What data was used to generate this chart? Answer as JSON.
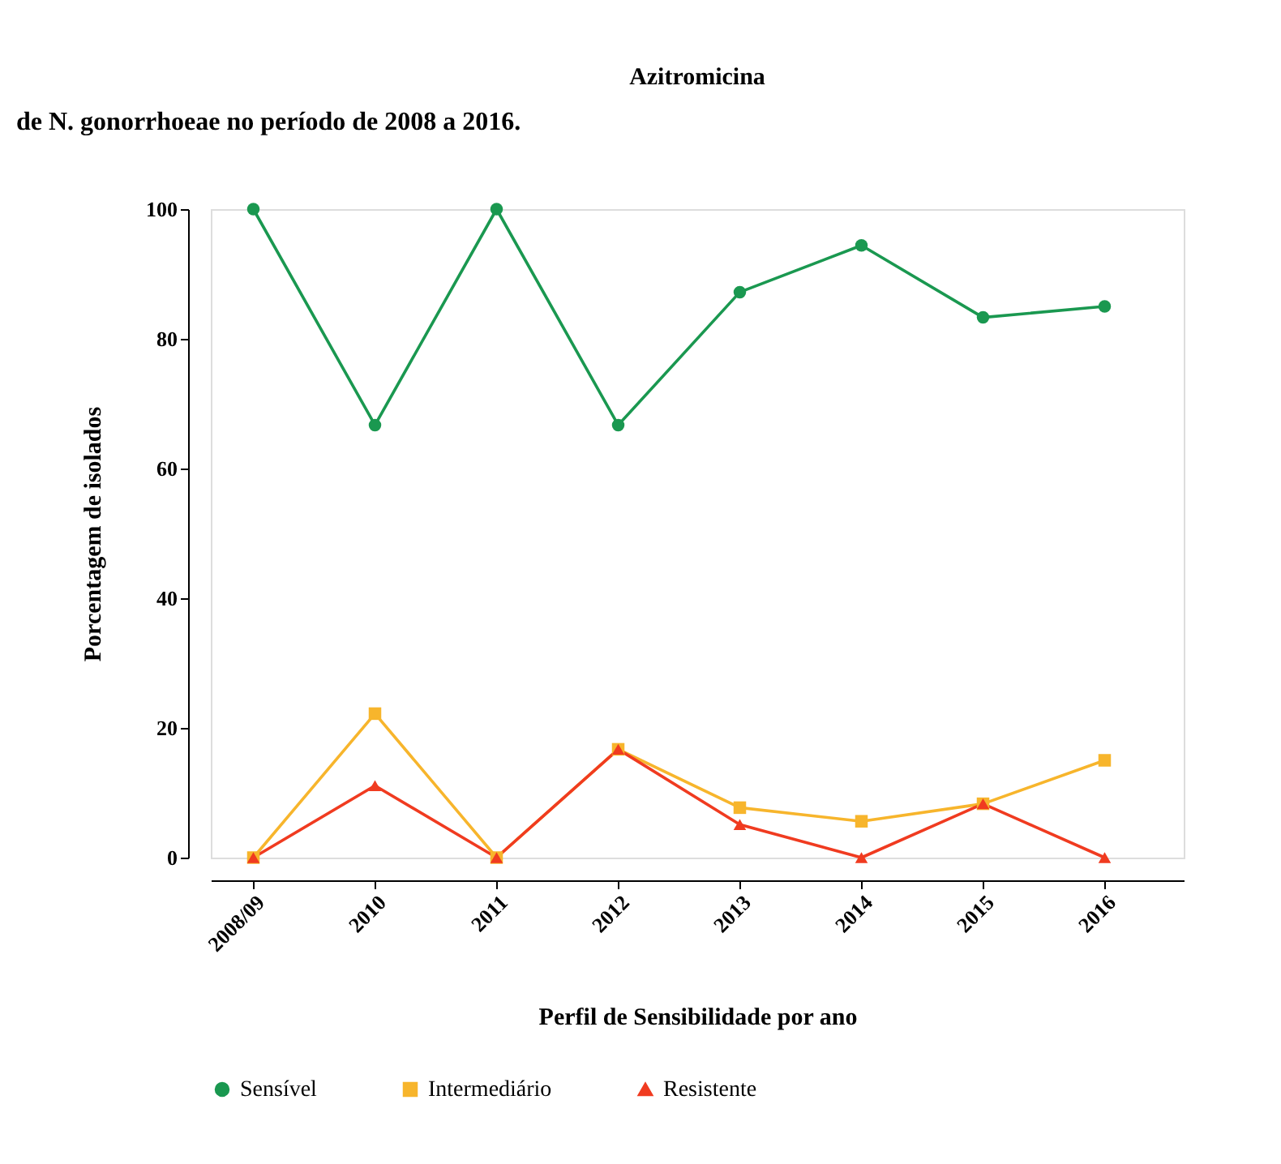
{
  "chart_data": {
    "type": "line",
    "title": "Azitromicina",
    "xlabel": "Perfil de Sensibilidade por ano",
    "ylabel": "Porcentagem de isolados",
    "annotations": [
      "de N. gonorrhoeae no período de 2008 a 2016."
    ],
    "categories": [
      "2008/09",
      "2010",
      "2011",
      "2012",
      "2013",
      "2014",
      "2015",
      "2016"
    ],
    "series": [
      {
        "name": "Sensível",
        "color": "#1a9850",
        "marker": "circle",
        "values": [
          100,
          66.7,
          100,
          66.7,
          87.2,
          94.4,
          83.3,
          85
        ]
      },
      {
        "name": "Intermediário",
        "color": "#f7b52c",
        "marker": "square",
        "values": [
          0,
          22.2,
          0,
          16.7,
          7.7,
          5.6,
          8.3,
          15
        ]
      },
      {
        "name": "Resistente",
        "color": "#f03b20",
        "marker": "triangle",
        "values": [
          0,
          11.1,
          0,
          16.7,
          5.1,
          0,
          8.3,
          0
        ]
      }
    ],
    "ylim": [
      0,
      100
    ],
    "yticks": [
      0,
      20,
      40,
      60,
      80,
      100
    ],
    "grid": false,
    "legend": "bottom",
    "line_style": "solid"
  }
}
